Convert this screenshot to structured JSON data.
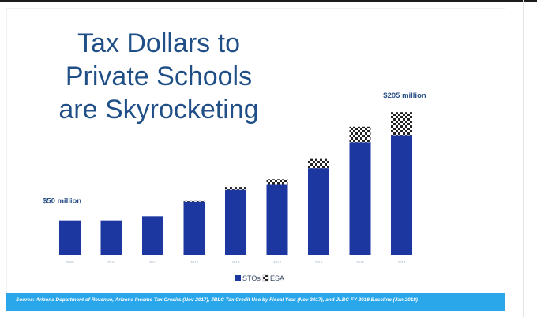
{
  "title_lines": [
    "Tax Dollars to",
    "Private Schools",
    "are Skyrocketing"
  ],
  "footer": "Source: Arizona Department of Revenue, Arizona Income Tax Credits (Nov 2017), JBLC Tax Credit Use by Fiscal Year (Nov 2017), and JLBC FY 2019 Baseline (Jan 2018)",
  "colors": {
    "sto": "#1d37a0",
    "esa_pattern": "checkered",
    "title": "#1f4f86",
    "footer": "#2aa6ea"
  },
  "chart_data": {
    "type": "bar",
    "stacked": true,
    "categories": [
      "2009",
      "2010",
      "2011",
      "2012",
      "2013",
      "2014",
      "2015",
      "2016",
      "2017"
    ],
    "series": [
      {
        "name": "STOs",
        "values": [
          50,
          50,
          56,
          77,
          94,
          102,
          125,
          162,
          172
        ]
      },
      {
        "name": "ESA",
        "values": [
          0,
          0,
          0,
          1,
          4,
          7,
          13,
          22,
          33
        ]
      }
    ],
    "annotations": [
      {
        "category": "2009",
        "text": "$50 million"
      },
      {
        "category": "2017",
        "text": "$205 million"
      }
    ],
    "ylim": [
      0,
      230
    ],
    "legend": "bottom-center"
  }
}
